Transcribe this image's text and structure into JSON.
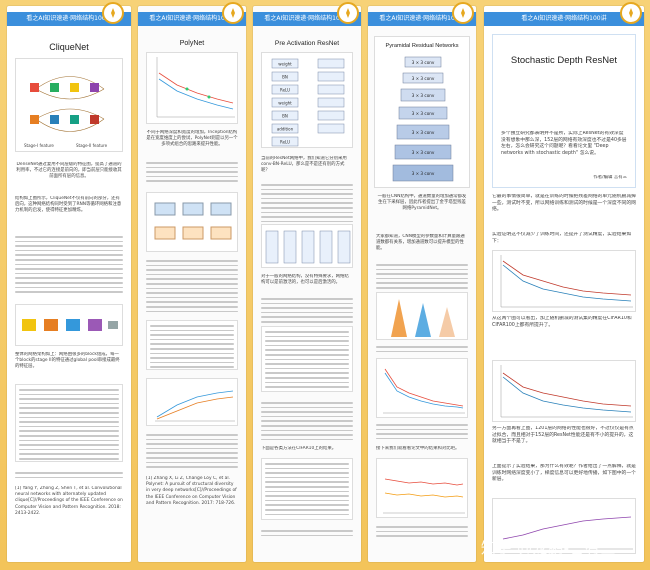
{
  "banners": [
    "看之AI知识速递·网络结构100讲",
    "看之AI知识速递·网络结构100讲",
    "看之AI知识速递·网络结构100讲",
    "看之AI知识速递·网络结构100讲",
    "看之AI知识速递·网络结构100讲"
  ],
  "cards": [
    {
      "title": "CliqueNet",
      "caption": "DenseNet通过复用不同层级的特征图，提高了通道的利用率，不过它的连接是前向的，即当前层只能接收其前面所有层的信息。",
      "para1": "结构如上图所示，CliqueNet不仅有前向的部分，还有后向，这种网络结构同时受到了RNN等循环网络和注意力机制的启发，使得特征更加精炼。",
      "para2": "整体的网络架构如上：网络由很多的block组成，每一个block的stage II的特征通过global pool串接成最终的特征层。",
      "ref": "[1] Yang Y, Zhong Z, Shen T, et al. Convolutional neural networks with alternately updated clique[C]//Proceedings of the IEEE Conference on Computer Vision and Pattern Recognition. 2018: 2413-2422."
    },
    {
      "title": "PolyNet",
      "caption": "不同于网络深度和宽度的增加，Inception结构是在宽度维度上的尝试，PolyNet则是以另一个多项式组合的思路来提升性能。",
      "ref": "[1] Zhang X, Li Z, Change Loy C, et al. Polynet: A pursuit of structural diversity in very deep networks[C]//Proceedings of the IEEE Conference on Computer Vision and Pattern Recognition. 2017: 718-726."
    },
    {
      "title": "Pre Activation ResNet",
      "caption": "当前的ResNet网络中，我们知道它分别采用 conv-BN-ReLU，那么是不是还有别的方式呢？",
      "para1": "对于一般的网络结构，没有特殊要求，网络结构可以是前激活的，也可以是后激活的。",
      "table": "下面是各类方法在CIFAR10上的结果。"
    },
    {
      "title": "Pyramidal Residual Networks",
      "caption": "一般在CNN结构中，通道数量的增加通常都发生在下采样层，因此作者提出了金字塔型残差网络PyramidNet。",
      "para1": "大家都知道，CNN模型的参数量和计算量跟通道数都有关系，增加通道数可以提升模型的性能。",
      "para2": "接下来我们就看看论文中的结果和对比吧。"
    },
    {
      "title": "Stochastic Depth ResNet",
      "caption": "多个独立研究都表明并不是所，实际上ResNet的有效深度没有想象中那么深，152层的网络有效深度也不过是40多层左右，怎么会研究这个问题呢？看看论文里 \"Deep networks with stochastic depth\" 怎么说。",
      "author": "作者/编辑 言有三",
      "para1": "它最的事情很简单，就是在训练的时候把残差网络的单元随机删减掉一些，测试时不变，所以网络训练和测试的时候是一个深度不同的网络。",
      "para2": "实验证明这不仅减少了训练时间，还提升了测试精度，实验结果如下：",
      "para3": "从这两个图可以看出，加上随机删减的测试集的精度在CIFAR10和CIFAR100上都有所提升了。",
      "para4": "另一方面再看上图，1201层的网络的性能也很好，不过仅仅是有点过拟合，而且相对于152层的ResNet性能还是有不小的提升的，这就相当于不是了。",
      "para5": "上面提示了实验结果，那为什么有效呢？作者给出了一点解释，就是训练时网络深度变小了，梯度信息可以更好地传播，如下图中的一个新层。"
    }
  ],
  "card1_figlabels": [
    "Stage-I feature",
    "Stage-II feature"
  ],
  "card3_blocks": [
    "weight",
    "BN",
    "ReLU",
    "weight",
    "BN",
    "addition",
    "ReLU"
  ],
  "card4_blocks": [
    "3 × 3 conv",
    "3 × 3 conv",
    "3 × 3 conv",
    "3 × 3 conv",
    "3 × 3 conv",
    "3 × 3 conv",
    "3 × 3 conv"
  ],
  "watermark": "知乎 @龙鹏-言有三",
  "colors": {
    "banner": "#3b8fdc",
    "background": "#f3c45a",
    "logo_ring": "#e6a820"
  }
}
